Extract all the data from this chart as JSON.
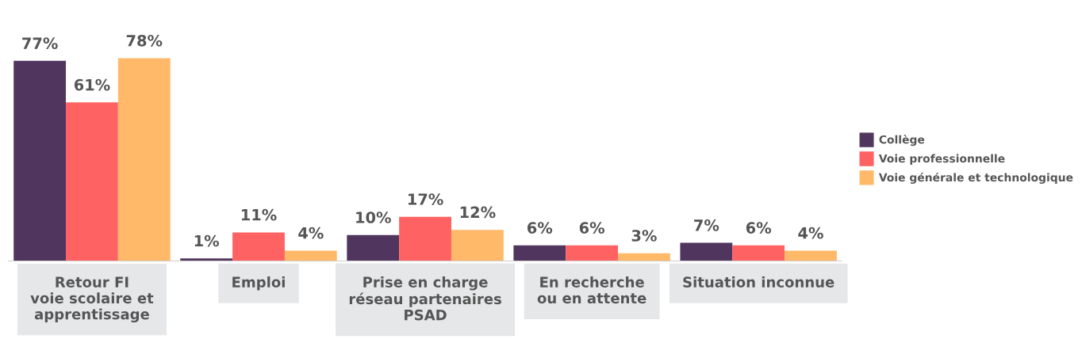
{
  "chart_data": {
    "type": "bar",
    "categories": [
      "Retour FI\nvoie scolaire et\napprentissage",
      "Emploi",
      "Prise en charge\nréseau partenaires\nPSAD",
      "En recherche\nou en attente",
      "Situation inconnue"
    ],
    "series": [
      {
        "name": "Collège",
        "color": "#50365e",
        "values": [
          77,
          1,
          10,
          6,
          7
        ],
        "value_labels": [
          "77%",
          "1%",
          "10%",
          "6%",
          "7%"
        ]
      },
      {
        "name": "Voie professionnelle",
        "color": "#ff6262",
        "values": [
          61,
          11,
          17,
          6,
          6
        ],
        "value_labels": [
          "61%",
          "11%",
          "17%",
          "6%",
          "6%"
        ]
      },
      {
        "name": "Voie générale et technologique",
        "color": "#ffb968",
        "values": [
          78,
          4,
          12,
          3,
          4
        ],
        "value_labels": [
          "78%",
          "4%",
          "12%",
          "3%",
          "4%"
        ]
      }
    ],
    "legend": "right",
    "grid": false
  }
}
